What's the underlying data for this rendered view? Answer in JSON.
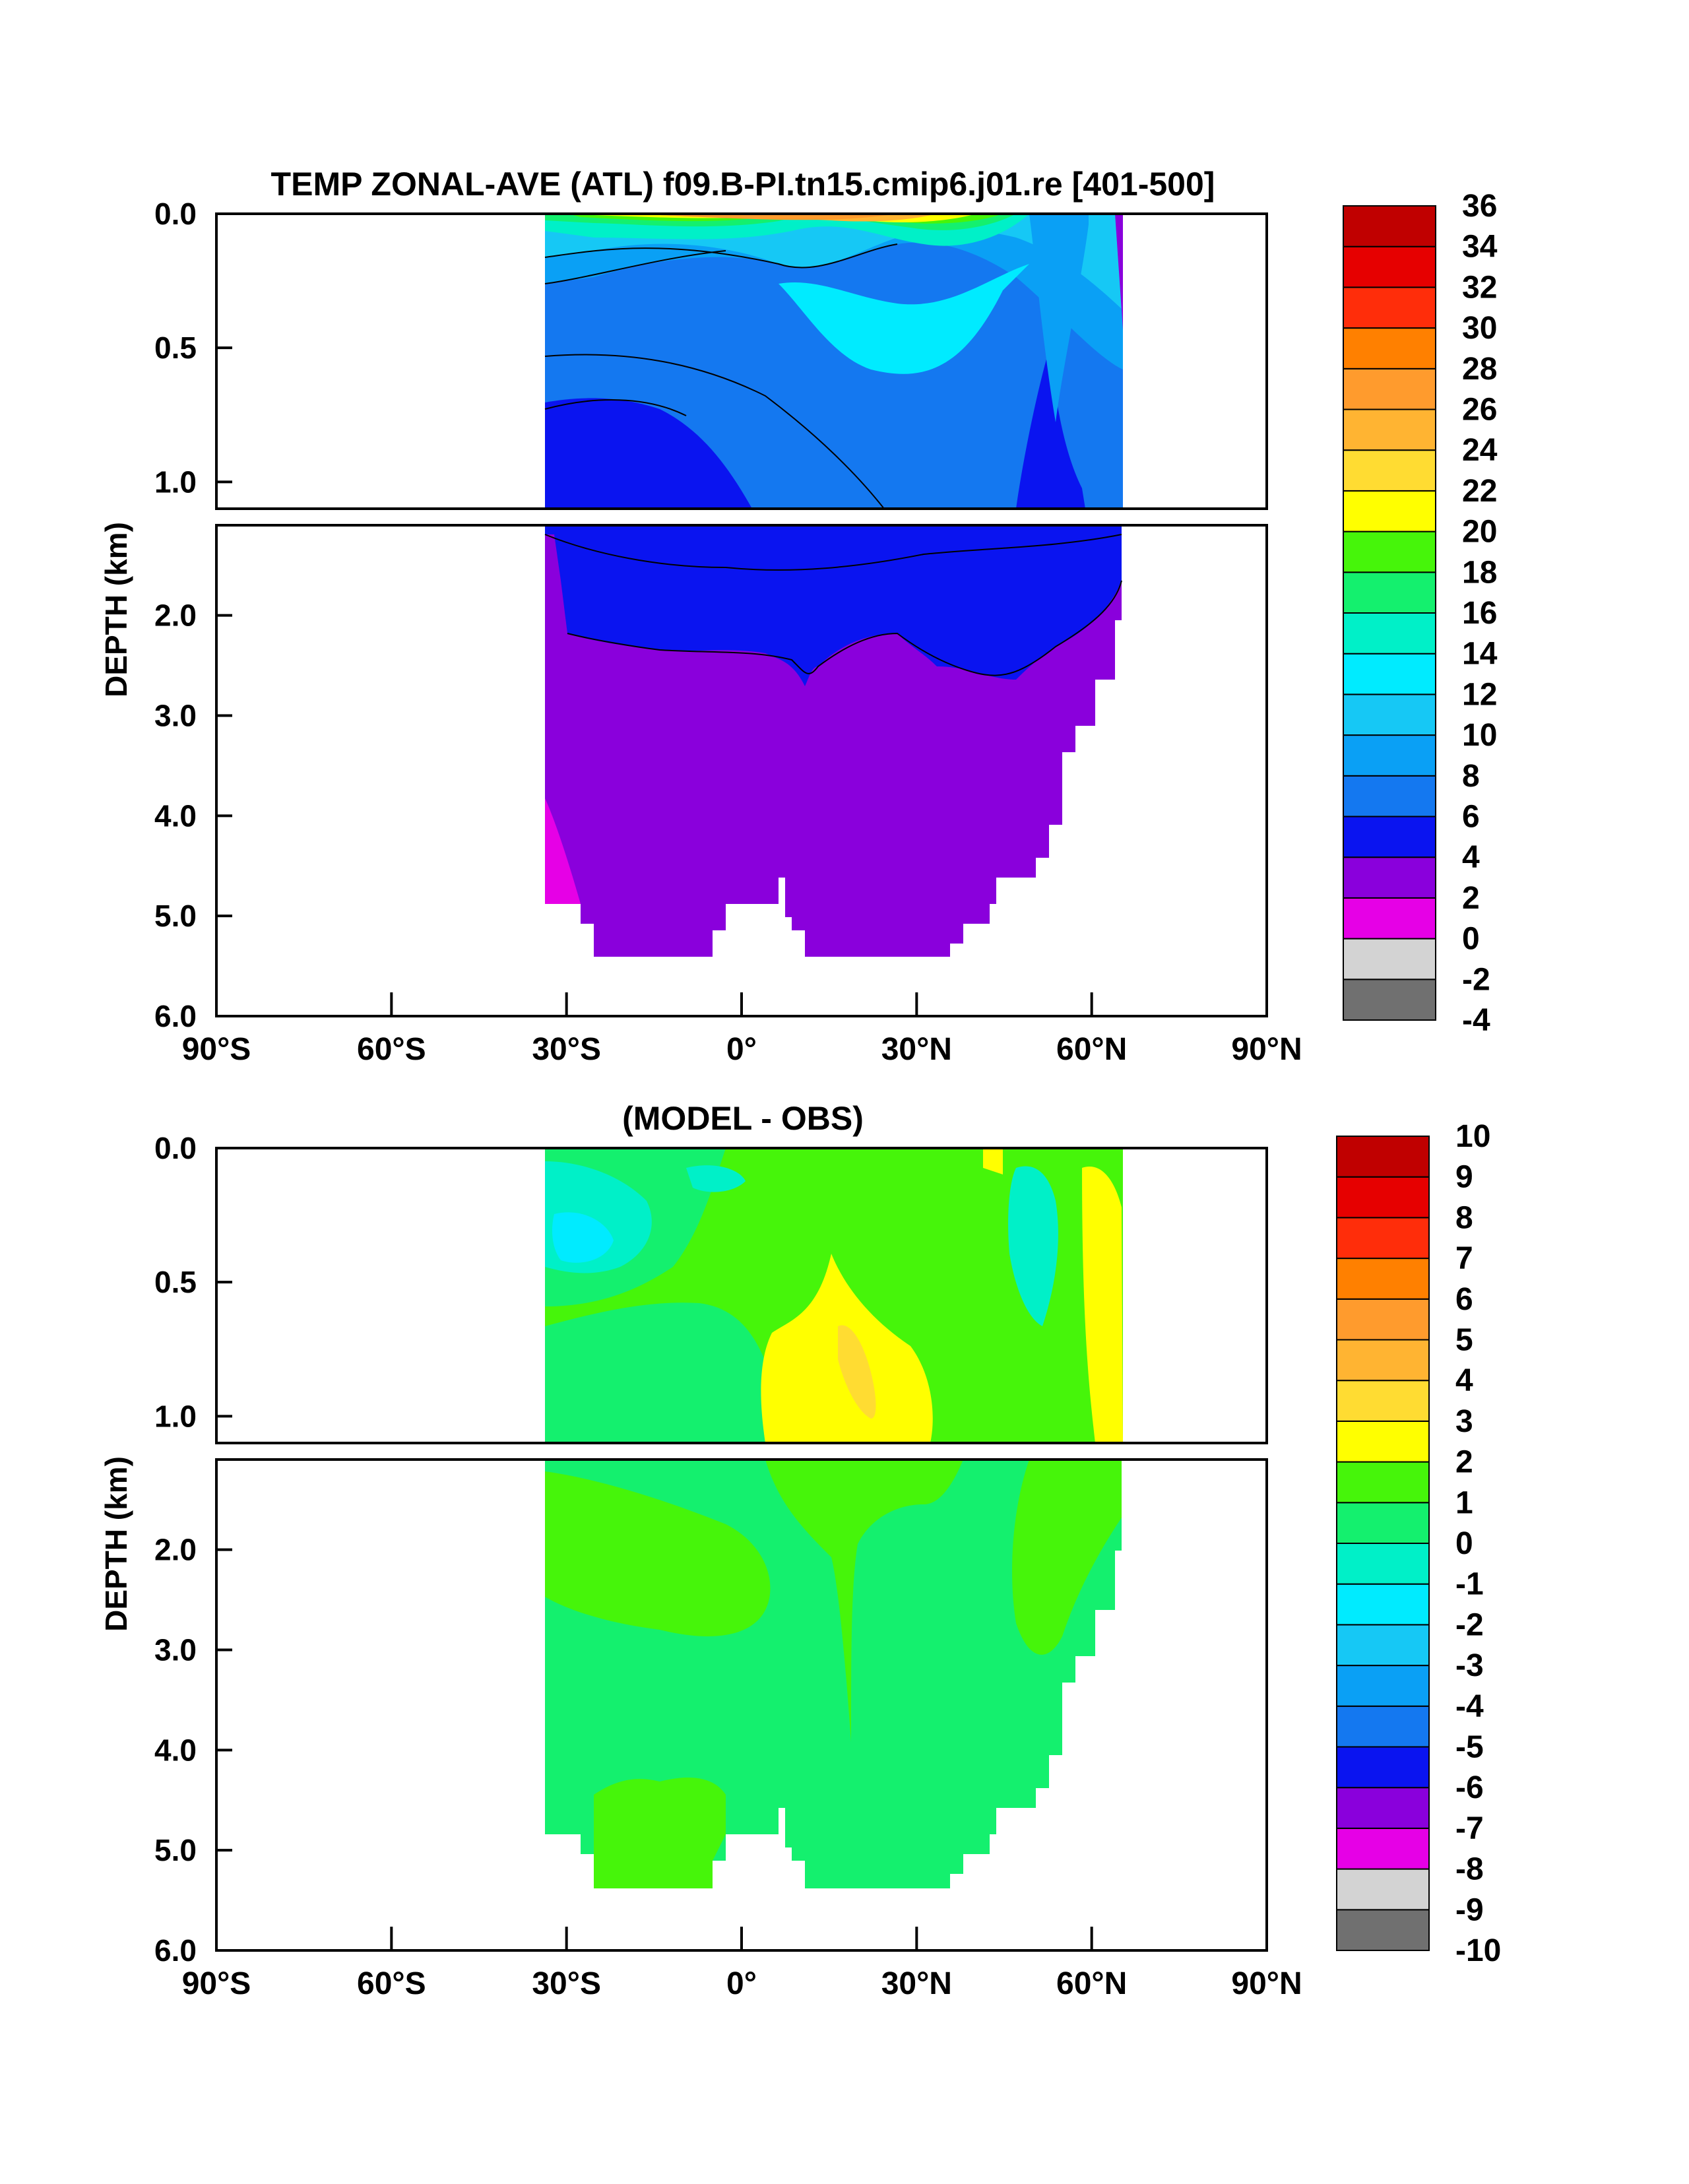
{
  "chart_data": [
    {
      "type": "heatmap",
      "title": "TEMP ZONAL-AVE (ATL) f09.B-PI.tn15.cmip6.j01.re [401-500]",
      "ylabel": "DEPTH (km)",
      "xlabel": "",
      "x_ticks": [
        "90°S",
        "60°S",
        "30°S",
        "0°",
        "30°N",
        "60°N",
        "90°N"
      ],
      "x_range": [
        -90,
        90
      ],
      "y_ticks_upper": [
        "0.0",
        "0.5",
        "1.0"
      ],
      "y_ticks_lower": [
        "2.0",
        "3.0",
        "4.0",
        "5.0",
        "6.0"
      ],
      "y_range": [
        0,
        6
      ],
      "colorbar_labels": [
        "-4",
        "-2",
        "0",
        "2",
        "4",
        "6",
        "8",
        "10",
        "12",
        "14",
        "16",
        "18",
        "20",
        "22",
        "24",
        "26",
        "28",
        "30",
        "32",
        "34",
        "36"
      ],
      "colorbar_colors": [
        "#707070",
        "#d3d3d3",
        "#e600e6",
        "#8a00dc",
        "#0a14f0",
        "#1478f0",
        "#0aa0f5",
        "#16c8f5",
        "#00ebff",
        "#00f0c8",
        "#14f06e",
        "#46f50a",
        "#ffff00",
        "#ffdc32",
        "#ffb432",
        "#ff9b2d",
        "#ff8000",
        "#ff2d0a",
        "#e60000",
        "#c00000"
      ],
      "data_extent": {
        "lat_min": -34,
        "lat_max": 66,
        "max_depth_km": 5.4
      }
    },
    {
      "type": "heatmap",
      "title": "(MODEL - OBS)",
      "ylabel": "DEPTH (km)",
      "xlabel": "",
      "x_ticks": [
        "90°S",
        "60°S",
        "30°S",
        "0°",
        "30°N",
        "60°N",
        "90°N"
      ],
      "x_range": [
        -90,
        90
      ],
      "y_ticks_upper": [
        "0.0",
        "0.5",
        "1.0"
      ],
      "y_ticks_lower": [
        "2.0",
        "3.0",
        "4.0",
        "5.0",
        "6.0"
      ],
      "y_range": [
        0,
        6
      ],
      "colorbar_labels": [
        "-10",
        "-9",
        "-8",
        "-7",
        "-6",
        "-5",
        "-4",
        "-3",
        "-2",
        "-1",
        "0",
        "1",
        "2",
        "3",
        "4",
        "5",
        "6",
        "7",
        "8",
        "9",
        "10"
      ],
      "colorbar_colors": [
        "#707070",
        "#d3d3d3",
        "#e600e6",
        "#8a00dc",
        "#0a14f0",
        "#1478f0",
        "#0aa0f5",
        "#16c8f5",
        "#00ebff",
        "#00f0c8",
        "#14f06e",
        "#46f50a",
        "#ffff00",
        "#ffdc32",
        "#ffb432",
        "#ff9b2d",
        "#ff8000",
        "#ff2d0a",
        "#e60000",
        "#c00000"
      ],
      "data_extent": {
        "lat_min": -34,
        "lat_max": 66,
        "max_depth_km": 5.4
      }
    }
  ]
}
